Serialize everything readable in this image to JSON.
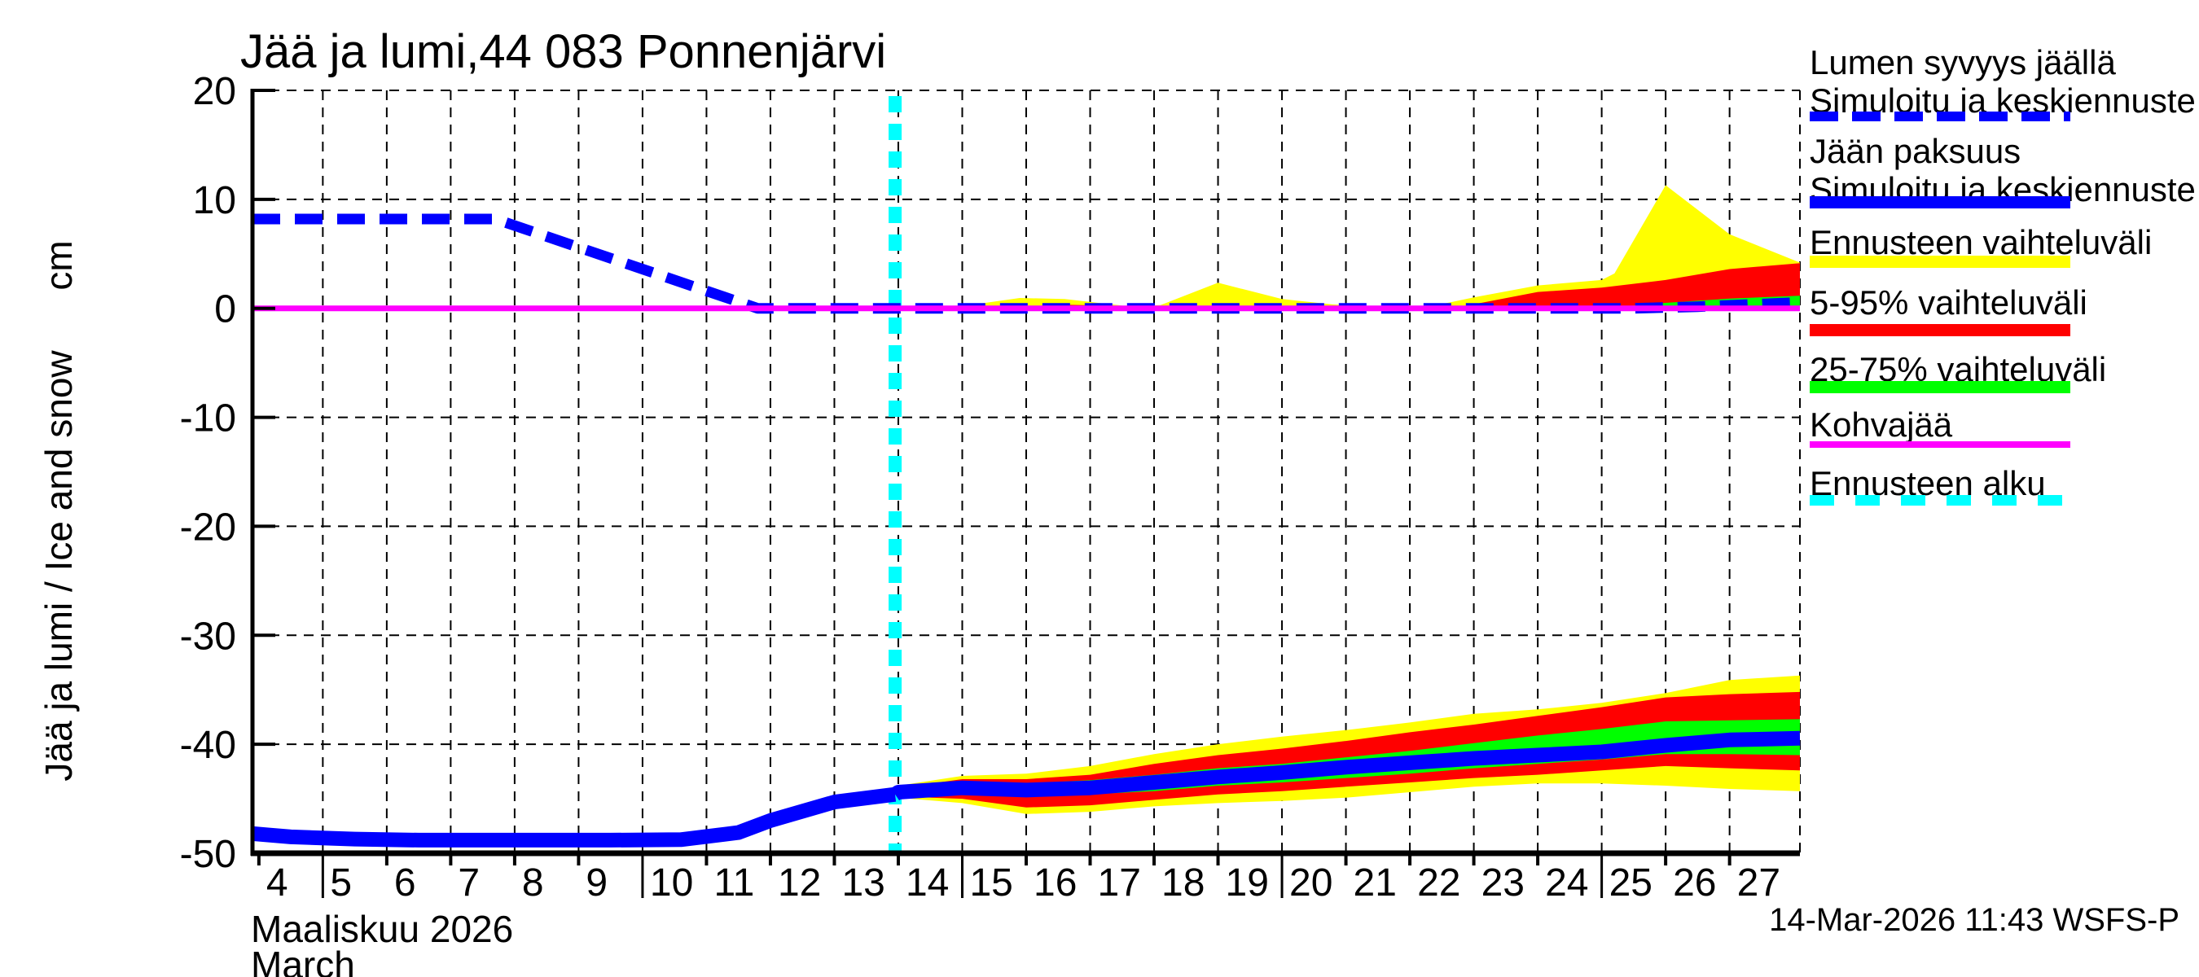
{
  "title": "Jää ja lumi,44 083 Ponnenjärvi",
  "y_axis": {
    "label": "Jää ja lumi / Ice and snow",
    "unit": "cm",
    "ticks": [
      20,
      10,
      0,
      -10,
      -20,
      -30,
      -40,
      -50
    ]
  },
  "x_axis": {
    "tick_days": [
      4,
      5,
      6,
      7,
      8,
      9,
      10,
      11,
      12,
      13,
      14,
      15,
      16,
      17,
      18,
      19,
      20,
      21,
      22,
      23,
      24,
      25,
      26,
      27
    ],
    "major_tick_days": [
      5,
      10,
      15,
      20,
      25
    ],
    "month_label_fi": "Maaliskuu 2026",
    "month_label_en": "March"
  },
  "footer": {
    "timestamp": "14-Mar-2026 11:43 WSFS-P"
  },
  "legend": {
    "entries": [
      {
        "lines": [
          "Lumen syvyys jäällä",
          "Simuloitu ja keskiennuste"
        ],
        "style": "dashed-blue",
        "color": "#0000ff"
      },
      {
        "lines": [
          "Jään paksuus",
          "Simuloitu ja keskiennuste"
        ],
        "style": "solid-blue",
        "color": "#0000ff"
      },
      {
        "lines": [
          "Ennusteen vaihteluväli"
        ],
        "style": "solid-yellow",
        "color": "#ffff00"
      },
      {
        "lines": [
          "5-95% vaihteluväli"
        ],
        "style": "solid-red",
        "color": "#ff0000"
      },
      {
        "lines": [
          "25-75% vaihteluväli"
        ],
        "style": "solid-green",
        "color": "#00ff00"
      },
      {
        "lines": [
          "Kohvajää"
        ],
        "style": "solid-magenta",
        "color": "#ff00ff"
      },
      {
        "lines": [
          "Ennusteen alku"
        ],
        "style": "dashed-cyan",
        "color": "#00ffff"
      }
    ]
  },
  "colors": {
    "simulated_line": "#0000ff",
    "range_minmax": "#ffff00",
    "range_5_95": "#ff0000",
    "range_25_75": "#00ff00",
    "kohvajaa": "#ff00ff",
    "forecast_start": "#00ffff",
    "grid": "#000000",
    "axis": "#000000"
  },
  "chart_data": {
    "type": "line",
    "title": "Jää ja lumi,44 083 Ponnenjärvi",
    "xlabel": "Maaliskuu 2026 / March",
    "ylabel": "Jää ja lumi / Ice and snow (cm)",
    "x_unit": "day of March 2026",
    "y_unit": "cm",
    "x_range": [
      3.9,
      28.1
    ],
    "y_range": [
      -50,
      20
    ],
    "grid": {
      "x_gridline_days": [
        5,
        6,
        7,
        8,
        9,
        10,
        11,
        12,
        13,
        14,
        15,
        16,
        17,
        18,
        19,
        20,
        21,
        22,
        23,
        24,
        25,
        26,
        27,
        28.1
      ],
      "y_gridline_values": [
        20,
        10,
        -10,
        -20,
        -30,
        -40
      ]
    },
    "forecast_start_day": 13.95,
    "vlines": [
      {
        "name": "forecast-start",
        "x": 13.95,
        "color": "#00ffff",
        "width": 16,
        "dash": [
          20,
          14
        ]
      }
    ],
    "bands": [
      {
        "name": "snow-range-minmax",
        "color": "#ffff00",
        "x": [
          13.95,
          15.0,
          15.9,
          16.6,
          17.6,
          18.1,
          19.0,
          20.0,
          20.8,
          21.5,
          22.3,
          23.0,
          24.0,
          25.0,
          25.2,
          26.0,
          27.0,
          28.1
        ],
        "upper": [
          0.05,
          0.2,
          0.95,
          0.85,
          0.18,
          0.3,
          2.35,
          0.85,
          0.35,
          0.12,
          0.15,
          1.0,
          2.1,
          2.6,
          3.2,
          11.3,
          6.8,
          4.2
        ],
        "lower": 0
      },
      {
        "name": "snow-range-5-95",
        "color": "#ff0000",
        "x": [
          13.95,
          16.0,
          16.4,
          16.9,
          17.15,
          21.0,
          22.8,
          24.0,
          25.0,
          26.0,
          27.0,
          28.1
        ],
        "upper": [
          0.03,
          0.06,
          0.35,
          0.3,
          0.05,
          0.06,
          0.15,
          1.5,
          1.9,
          2.6,
          3.6,
          4.15
        ],
        "lower": 0
      },
      {
        "name": "snow-range-25-75",
        "color": "#00ff00",
        "x": [
          13.95,
          24.8,
          25.4,
          26.0,
          27.0,
          28.1
        ],
        "upper": [
          0.02,
          0.05,
          0.2,
          0.5,
          0.9,
          1.15
        ],
        "lower": 0
      },
      {
        "name": "ice-range-minmax",
        "color": "#ffff00",
        "x": [
          13.95,
          14,
          15,
          16,
          17,
          18,
          19,
          20,
          21,
          22,
          23,
          24,
          25,
          26,
          27,
          28.1
        ],
        "upper": [
          -44.6,
          -43.8,
          -42.9,
          -42.7,
          -42.0,
          -40.9,
          -40.0,
          -39.3,
          -38.7,
          -38.0,
          -37.2,
          -36.8,
          -36.2,
          -35.3,
          -34.1,
          -33.7
        ],
        "lower": [
          -44.6,
          -44.9,
          -45.4,
          -46.4,
          -46.2,
          -45.7,
          -45.4,
          -45.2,
          -44.9,
          -44.4,
          -43.9,
          -43.6,
          -43.6,
          -43.8,
          -44.1,
          -44.3
        ]
      },
      {
        "name": "ice-range-5-95",
        "color": "#ff0000",
        "x": [
          13.95,
          14,
          15,
          16,
          17,
          18,
          19,
          20,
          21,
          22,
          23,
          24,
          25,
          26,
          27,
          28.1
        ],
        "upper": [
          -44.6,
          -44.0,
          -43.2,
          -43.2,
          -42.8,
          -41.8,
          -41.0,
          -40.4,
          -39.7,
          -38.9,
          -38.2,
          -37.4,
          -36.6,
          -35.7,
          -35.4,
          -35.2
        ],
        "lower": [
          -44.6,
          -44.8,
          -45.0,
          -45.8,
          -45.6,
          -45.1,
          -44.6,
          -44.3,
          -43.9,
          -43.5,
          -43.1,
          -42.8,
          -42.4,
          -42.0,
          -42.2,
          -42.4
        ]
      },
      {
        "name": "ice-range-25-75",
        "color": "#00ff00",
        "x": [
          13.95,
          14,
          15,
          16,
          17,
          18,
          19,
          20,
          21,
          22,
          23,
          24,
          25,
          26,
          27,
          28.1
        ],
        "upper": [
          -44.6,
          -44.2,
          -43.6,
          -43.6,
          -43.3,
          -42.8,
          -42.2,
          -41.8,
          -41.2,
          -40.6,
          -39.9,
          -39.2,
          -38.6,
          -37.9,
          -37.8,
          -37.7
        ],
        "lower": [
          -44.6,
          -44.6,
          -44.4,
          -44.7,
          -44.6,
          -44.3,
          -43.8,
          -43.5,
          -43.1,
          -42.7,
          -42.2,
          -41.8,
          -41.4,
          -40.9,
          -40.9,
          -41.0
        ]
      }
    ],
    "lines": [
      {
        "name": "ice-thickness-simulated",
        "color": "#0000ff",
        "width": 18,
        "x": [
          3.9,
          4.5,
          5.5,
          6.5,
          8,
          9.5,
          10.6,
          11.5,
          12,
          13,
          13.95
        ],
        "y": [
          -48.2,
          -48.5,
          -48.7,
          -48.8,
          -48.8,
          -48.8,
          -48.75,
          -48.1,
          -47.0,
          -45.3,
          -44.6
        ]
      },
      {
        "name": "ice-thickness-median-forecast",
        "color": "#0000ff",
        "width": 18,
        "x": [
          13.95,
          14,
          15,
          16,
          17,
          18,
          19,
          20,
          21,
          22,
          23,
          24,
          25,
          26,
          27,
          28.1
        ],
        "y": [
          -44.6,
          -44.4,
          -44.0,
          -44.2,
          -44.0,
          -43.5,
          -43.0,
          -42.6,
          -42.1,
          -41.7,
          -41.3,
          -41.0,
          -40.7,
          -40.1,
          -39.6,
          -39.45
        ]
      },
      {
        "name": "snow-depth-on-ice",
        "color": "#0000ff",
        "width": 13,
        "dash": [
          34,
          18
        ],
        "x": [
          3.9,
          7.7,
          11.8,
          25.5,
          26.5,
          28.1
        ],
        "y": [
          8.2,
          8.2,
          0,
          0,
          0.15,
          0.55
        ]
      },
      {
        "name": "kohvajaa",
        "color": "#ff00ff",
        "width": 7,
        "x": [
          3.9,
          28.1
        ],
        "y": [
          0,
          0
        ]
      }
    ]
  }
}
